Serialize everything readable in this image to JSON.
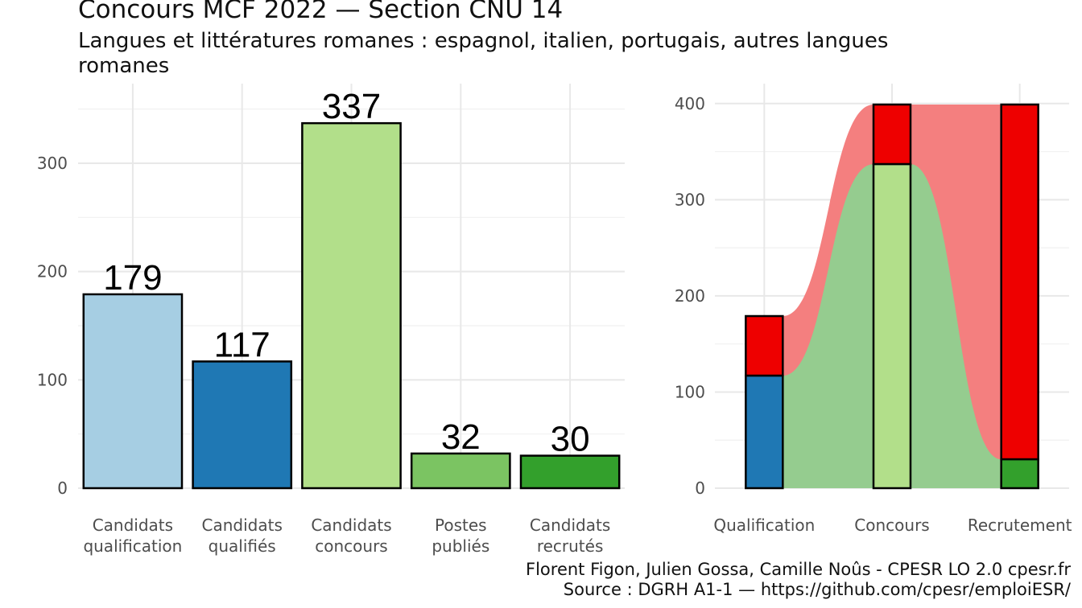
{
  "title": "Concours MCF  2022  —  Section CNU 14",
  "subtitle": "Langues et littératures romanes : espagnol, italien, portugais, autres langues romanes",
  "credits": {
    "authors": "Florent Figon, Julien Gossa, Camille Noûs - CPESR LO 2.0 cpesr.fr",
    "source": "Source : DGRH A1-1 — https://github.com/cpesr/emploiESR/"
  },
  "chart_data": [
    {
      "type": "bar",
      "categories": [
        [
          "Candidats",
          "qualification"
        ],
        [
          "Candidats",
          "qualifiés"
        ],
        [
          "Candidats",
          "concours"
        ],
        [
          "Postes",
          "publiés"
        ],
        [
          "Candidats",
          "recrutés"
        ]
      ],
      "values": [
        179,
        117,
        337,
        32,
        30
      ],
      "colors": [
        "#a6cee3",
        "#1f78b4",
        "#b2df8a",
        "#7bc462",
        "#33a02c"
      ],
      "yticks": [
        0,
        100,
        200,
        300
      ],
      "ylim": [
        0,
        360
      ],
      "grid": true
    },
    {
      "type": "area",
      "categories": [
        "Qualification",
        "Concours",
        "Recrutement"
      ],
      "total": 399,
      "stacks": [
        {
          "bottom": 117,
          "bottom_color": "#1f78b4"
        },
        {
          "bottom": 337,
          "bottom_color": "#b2df8a"
        },
        {
          "bottom": 30,
          "bottom_color": "#33a02c"
        }
      ],
      "top_color": "#ee0000",
      "flow_colors": {
        "upper": "#f47f7f",
        "lower": "#95cc8f"
      },
      "upper_flow": [
        179,
        399,
        399
      ],
      "lower_flow": [
        117,
        337,
        30
      ],
      "yticks": [
        0,
        100,
        200,
        300,
        400
      ],
      "ylim": [
        0,
        420
      ],
      "grid": true
    }
  ]
}
